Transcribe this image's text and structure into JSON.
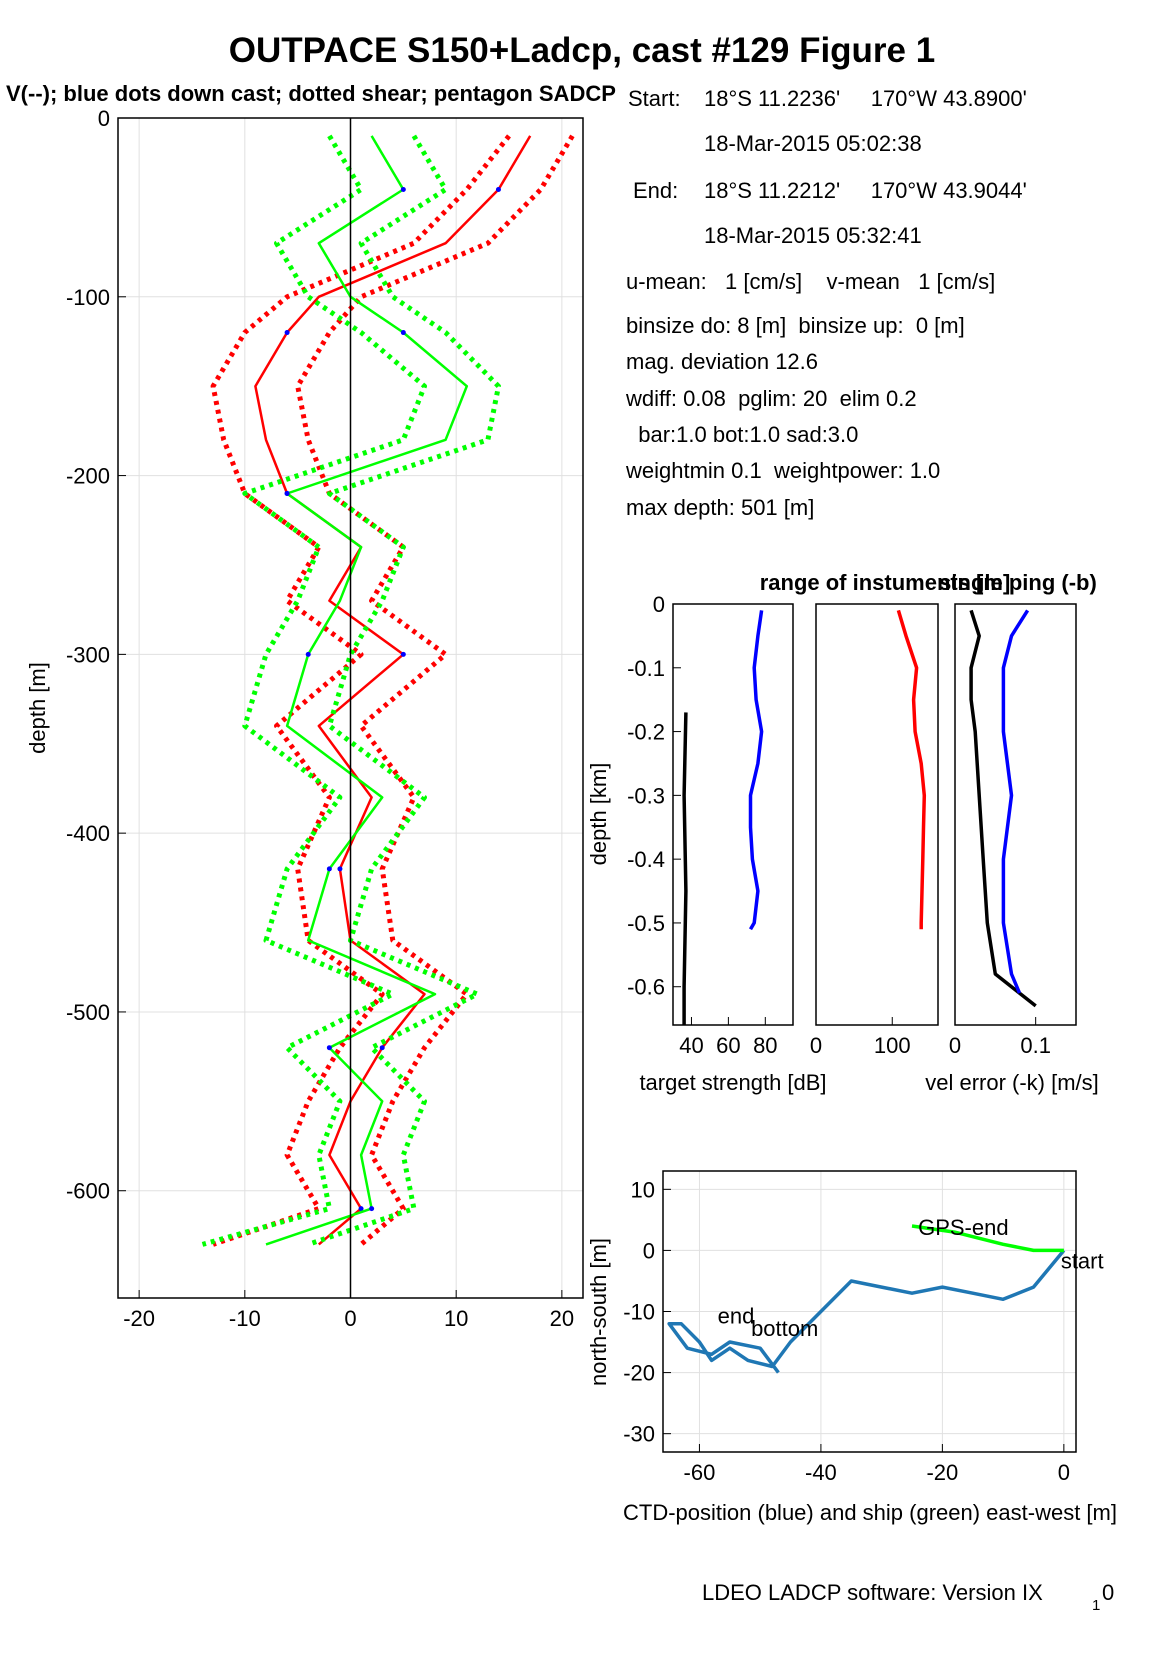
{
  "title": "OUTPACE S150+Ladcp, cast #129  Figure 1",
  "subtitle": "V(--); blue dots down cast; dotted shear; pentagon SADCP",
  "footer": "LDEO LADCP software: Version IX",
  "footer_sub": "1",
  "footer_tail": "0",
  "info": {
    "start_label": "Start:",
    "start_pos": "18°S 11.2236'     170°W 43.8900'",
    "start_time": "18-Mar-2015 05:02:38",
    "end_label": "End:",
    "end_pos": "18°S 11.2212'     170°W 43.9044'",
    "end_time": "18-Mar-2015 05:32:41",
    "means": "u-mean:   1 [cm/s]    v-mean   1 [cm/s]",
    "binsize": "binsize do: 8 [m]  binsize up:  0 [m]",
    "magdev": "mag. deviation 12.6",
    "wdiff": "wdiff: 0.08  pglim: 20  elim 0.2",
    "bar": "  bar:1.0 bot:1.0 sad:3.0",
    "weight": "weightmin 0.1  weightpower: 1.0",
    "maxdepth": "max depth: 501 [m]"
  },
  "colors": {
    "red": "#ff0000",
    "green": "#00ff00",
    "blue": "#0000ff",
    "yellow": "#ffff00",
    "ctd": "#1f77b4"
  },
  "chart_data": [
    {
      "type": "line",
      "name": "velocity-profile",
      "ylabel": "depth [m]",
      "xlabel": "",
      "xlim": [
        -22,
        22
      ],
      "ylim": [
        -660,
        0
      ],
      "xticks": [
        -20,
        -10,
        0,
        10,
        20
      ],
      "yticks": [
        0,
        -100,
        -200,
        -300,
        -400,
        -500,
        -600
      ],
      "grid": true,
      "series": [
        {
          "color": "red",
          "style": "solid",
          "depth": [
            -10,
            -40,
            -70,
            -100,
            -120,
            -150,
            -180,
            -210,
            -240,
            -270,
            -300,
            -340,
            -380,
            -420,
            -460,
            -490,
            -520,
            -550,
            -580,
            -610,
            -630
          ],
          "values": [
            17,
            14,
            9,
            -3,
            -6,
            -9,
            -8,
            -6,
            1,
            -2,
            5,
            -3,
            2,
            -1,
            0,
            7,
            3,
            0,
            -2,
            1,
            -3
          ]
        },
        {
          "color": "red",
          "style": "dotted",
          "depth": [
            -10,
            -40,
            -70,
            -100,
            -120,
            -150,
            -180,
            -210,
            -240,
            -270,
            -300,
            -340,
            -380,
            -420,
            -460,
            -490,
            -520,
            -550,
            -580,
            -610,
            -630
          ],
          "values": [
            21,
            18,
            13,
            1,
            -2,
            -5,
            -4,
            -2,
            5,
            2,
            9,
            1,
            6,
            3,
            4,
            11,
            7,
            4,
            2,
            5,
            1
          ]
        },
        {
          "color": "red",
          "style": "dotted",
          "depth": [
            -10,
            -40,
            -70,
            -100,
            -120,
            -150,
            -180,
            -210,
            -240,
            -270,
            -300,
            -340,
            -380,
            -420,
            -460,
            -490,
            -520,
            -550,
            -580,
            -610,
            -630
          ],
          "values": [
            15,
            11,
            6,
            -6,
            -10,
            -13,
            -12,
            -10,
            -3,
            -6,
            1,
            -7,
            -2,
            -5,
            -4,
            3,
            -1,
            -4,
            -6,
            -3,
            -13
          ]
        },
        {
          "color": "green",
          "style": "solid",
          "depth": [
            -10,
            -40,
            -70,
            -100,
            -120,
            -150,
            -180,
            -210,
            -240,
            -270,
            -300,
            -340,
            -380,
            -420,
            -460,
            -490,
            -520,
            -550,
            -580,
            -610,
            -630
          ],
          "values": [
            2,
            5,
            -3,
            0,
            5,
            11,
            9,
            -6,
            1,
            -1,
            -4,
            -6,
            3,
            -2,
            -4,
            8,
            -2,
            3,
            1,
            2,
            -8
          ]
        },
        {
          "color": "green",
          "style": "dotted",
          "depth": [
            -10,
            -40,
            -70,
            -100,
            -120,
            -150,
            -180,
            -210,
            -240,
            -270,
            -300,
            -340,
            -380,
            -420,
            -460,
            -490,
            -520,
            -550,
            -580,
            -610,
            -630
          ],
          "values": [
            6,
            9,
            1,
            4,
            9,
            14,
            13,
            -2,
            5,
            3,
            0,
            -2,
            7,
            2,
            0,
            12,
            2,
            7,
            5,
            6,
            -4
          ]
        },
        {
          "color": "green",
          "style": "dotted",
          "depth": [
            -10,
            -40,
            -70,
            -100,
            -120,
            -150,
            -180,
            -210,
            -240,
            -270,
            -300,
            -340,
            -380,
            -420,
            -460,
            -490,
            -520,
            -550,
            -580,
            -610,
            -630
          ],
          "values": [
            -2,
            1,
            -7,
            -4,
            1,
            7,
            5,
            -10,
            -3,
            -5,
            -8,
            -10,
            -1,
            -6,
            -8,
            4,
            -6,
            -1,
            -3,
            -2,
            -14
          ]
        }
      ]
    },
    {
      "type": "line",
      "name": "target-strength",
      "title": "range of instuments [m]",
      "ylabel": "depth [km]",
      "xlabel": "target strength [dB]",
      "xlim": [
        30,
        95
      ],
      "ylim": [
        -0.66,
        0
      ],
      "xticks": [
        40,
        60,
        80
      ],
      "yticks": [
        0,
        -0.1,
        -0.2,
        -0.3,
        -0.4,
        -0.5,
        -0.6
      ],
      "series": [
        {
          "color": "blue",
          "depth": [
            -0.01,
            -0.05,
            -0.1,
            -0.15,
            -0.2,
            -0.25,
            -0.3,
            -0.35,
            -0.4,
            -0.45,
            -0.5,
            -0.51
          ],
          "values": [
            78,
            76,
            74,
            75,
            78,
            76,
            72,
            72,
            73,
            76,
            74,
            72
          ]
        },
        {
          "color": "black",
          "depth": [
            -0.17,
            -0.3,
            -0.45,
            -0.6,
            -0.66
          ],
          "values": [
            37,
            36,
            37,
            36,
            36
          ]
        }
      ]
    },
    {
      "type": "line",
      "name": "instrument-range",
      "xlim": [
        0,
        160
      ],
      "ylim": [
        -0.66,
        0
      ],
      "xticks": [
        0,
        100
      ],
      "series": [
        {
          "color": "red",
          "depth": [
            -0.01,
            -0.05,
            -0.1,
            -0.15,
            -0.2,
            -0.25,
            -0.3,
            -0.35,
            -0.4,
            -0.45,
            -0.5,
            -0.51
          ],
          "values": [
            108,
            118,
            132,
            128,
            130,
            138,
            142,
            141,
            140,
            139,
            138,
            138
          ]
        }
      ]
    },
    {
      "type": "line",
      "name": "velocity-error",
      "title": "single ping (-b)",
      "xlabel": "vel error (-k) [m/s]",
      "xlim": [
        0,
        0.15
      ],
      "ylim": [
        -0.66,
        0
      ],
      "xticks": [
        0,
        0.1
      ],
      "series": [
        {
          "color": "black",
          "depth": [
            -0.01,
            -0.05,
            -0.1,
            -0.15,
            -0.2,
            -0.3,
            -0.4,
            -0.5,
            -0.58,
            -0.61,
            -0.63
          ],
          "values": [
            0.02,
            0.03,
            0.02,
            0.02,
            0.025,
            0.03,
            0.035,
            0.04,
            0.05,
            0.08,
            0.1
          ]
        },
        {
          "color": "blue",
          "depth": [
            -0.01,
            -0.05,
            -0.1,
            -0.2,
            -0.3,
            -0.4,
            -0.5,
            -0.58,
            -0.61
          ],
          "values": [
            0.09,
            0.07,
            0.06,
            0.06,
            0.07,
            0.06,
            0.06,
            0.07,
            0.08
          ]
        }
      ]
    },
    {
      "type": "line",
      "name": "ship-ctd-position",
      "xlabel": "CTD-position (blue) and ship (green) east-west [m]",
      "ylabel": "north-south [m]",
      "xlim": [
        -66,
        2
      ],
      "ylim": [
        -33,
        13
      ],
      "xticks": [
        -60,
        -40,
        -20,
        0
      ],
      "yticks": [
        10,
        0,
        -10,
        -20,
        -30
      ],
      "annotations": [
        "GPS-end",
        "start",
        "end",
        "bottom"
      ],
      "series": [
        {
          "color": "ctd",
          "x": [
            0,
            -5,
            -10,
            -15,
            -20,
            -25,
            -30,
            -35,
            -40,
            -45,
            -48,
            -52,
            -55,
            -58,
            -60,
            -63,
            -65,
            -62,
            -58,
            -55,
            -50,
            -47
          ],
          "y": [
            0,
            -6,
            -8,
            -7,
            -6,
            -7,
            -6,
            -5,
            -10,
            -15,
            -19,
            -18,
            -16,
            -18,
            -15,
            -12,
            -12,
            -16,
            -17,
            -15,
            -16,
            -20
          ]
        },
        {
          "color": "green",
          "x": [
            -25,
            -18,
            -10,
            -5,
            0
          ],
          "y": [
            4,
            3,
            1,
            0,
            0
          ]
        }
      ]
    }
  ]
}
